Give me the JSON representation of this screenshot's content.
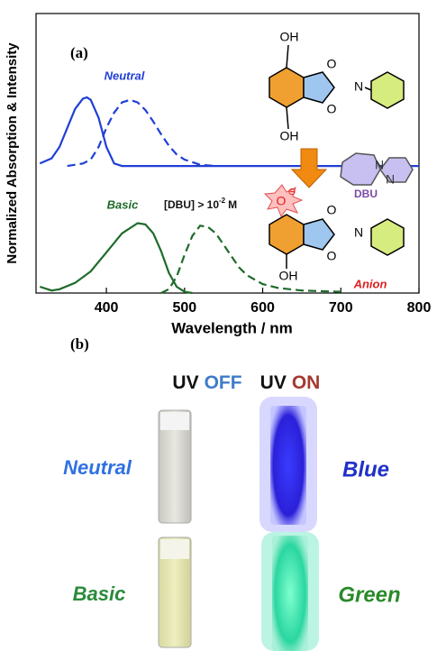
{
  "chart_data": {
    "type": "line",
    "panel_label": "(a)",
    "x_label": "Wavelength / nm",
    "y_label": "Normalized Absorption & Intensity",
    "xlim": [
      310,
      800
    ],
    "xticks": [
      400,
      500,
      600,
      700,
      800
    ],
    "ylim": [
      0,
      2.2
    ],
    "series": [
      {
        "color": "#1f3fd6",
        "style": "solid",
        "x": [
          315,
          330,
          340,
          350,
          360,
          370,
          375,
          380,
          390,
          400,
          410,
          420,
          500,
          600,
          700,
          800
        ],
        "y": [
          1.02,
          1.06,
          1.15,
          1.3,
          1.45,
          1.53,
          1.54,
          1.52,
          1.38,
          1.15,
          1.02,
          1.0,
          1.0,
          1.0,
          1.0,
          1.0
        ]
      },
      {
        "color": "#1f3fd6",
        "style": "dashed",
        "x": [
          350,
          370,
          380,
          390,
          400,
          410,
          420,
          430,
          440,
          450,
          460,
          470,
          480,
          490,
          500,
          520,
          540
        ],
        "y": [
          1.0,
          1.02,
          1.05,
          1.15,
          1.3,
          1.42,
          1.5,
          1.52,
          1.5,
          1.44,
          1.35,
          1.25,
          1.16,
          1.09,
          1.05,
          1.01,
          1.0
        ]
      },
      {
        "color": "#1e6b2a",
        "style": "solid",
        "x": [
          315,
          330,
          340,
          360,
          380,
          400,
          420,
          440,
          450,
          460,
          470,
          480,
          490,
          500,
          510
        ],
        "y": [
          0.05,
          0.02,
          0.03,
          0.08,
          0.17,
          0.32,
          0.47,
          0.55,
          0.54,
          0.47,
          0.33,
          0.16,
          0.05,
          0.01,
          0
        ]
      },
      {
        "color": "#1e6b2a",
        "style": "dashed",
        "x": [
          470,
          480,
          490,
          500,
          510,
          520,
          530,
          540,
          550,
          560,
          570,
          580,
          600,
          620,
          650,
          700
        ],
        "y": [
          0,
          0.03,
          0.13,
          0.3,
          0.45,
          0.53,
          0.52,
          0.47,
          0.38,
          0.29,
          0.2,
          0.14,
          0.07,
          0.04,
          0.02,
          0.01
        ]
      }
    ],
    "annotations": {
      "neutral": "Neutral",
      "basic": "Basic",
      "dbu_condition": {
        "base": "[DBU] > 10",
        "exponent": "-2",
        "unit": "M"
      },
      "dbu": "DBU",
      "anion": "Anion"
    },
    "structure_labels": [
      "OH",
      "O",
      "N",
      "O",
      "OH",
      "O",
      "⊖",
      "O",
      "N",
      "O",
      "OH",
      "N",
      "N"
    ]
  },
  "panel_b": {
    "panel_label": "(b)",
    "uv_off": {
      "prefix": "UV",
      "state": "OFF"
    },
    "uv_on": {
      "prefix": "UV",
      "state": "ON"
    },
    "rows": [
      {
        "condition": "Neutral",
        "emission": "Blue"
      },
      {
        "condition": "Basic",
        "emission": "Green"
      }
    ]
  }
}
